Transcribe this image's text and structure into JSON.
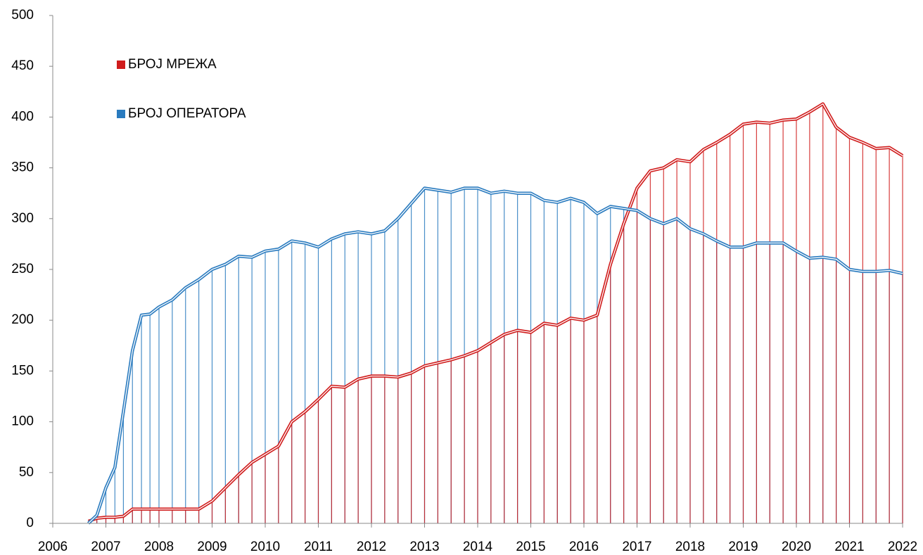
{
  "chart_data": {
    "type": "line",
    "x": [
      2006.67,
      2006.83,
      2007.0,
      2007.17,
      2007.33,
      2007.5,
      2007.67,
      2007.83,
      2008.0,
      2008.25,
      2008.5,
      2008.75,
      2009.0,
      2009.25,
      2009.5,
      2009.75,
      2010.0,
      2010.25,
      2010.5,
      2010.75,
      2011.0,
      2011.25,
      2011.5,
      2011.75,
      2012.0,
      2012.25,
      2012.5,
      2012.75,
      2013.0,
      2013.25,
      2013.5,
      2013.75,
      2014.0,
      2014.25,
      2014.5,
      2014.75,
      2015.0,
      2015.25,
      2015.5,
      2015.75,
      2016.0,
      2016.25,
      2016.5,
      2016.75,
      2017.0,
      2017.25,
      2017.5,
      2017.75,
      2018.0,
      2018.25,
      2018.5,
      2018.75,
      2019.0,
      2019.25,
      2019.5,
      2019.75,
      2020.0,
      2020.25,
      2020.5,
      2020.75,
      2021.0,
      2021.25,
      2021.5,
      2021.75,
      2022.0
    ],
    "series": [
      {
        "name": "БРОЈ МРЕЖА",
        "color": "#d01c1c",
        "values": [
          2,
          5,
          6,
          6,
          7,
          14,
          14,
          14,
          14,
          14,
          14,
          14,
          22,
          35,
          48,
          60,
          68,
          76,
          100,
          110,
          122,
          135,
          134,
          142,
          145,
          145,
          144,
          148,
          155,
          158,
          161,
          165,
          170,
          178,
          186,
          190,
          188,
          197,
          195,
          202,
          200,
          205,
          255,
          295,
          330,
          347,
          350,
          358,
          356,
          368,
          375,
          383,
          393,
          395,
          394,
          397,
          398,
          405,
          413,
          390,
          380,
          375,
          369,
          370,
          362
        ]
      },
      {
        "name": "БРОЈ ОПЕРАТОРА",
        "color": "#2a7bbf",
        "values": [
          0,
          8,
          35,
          55,
          110,
          170,
          205,
          206,
          213,
          220,
          232,
          240,
          250,
          255,
          263,
          262,
          268,
          270,
          278,
          276,
          272,
          280,
          285,
          287,
          285,
          288,
          300,
          315,
          330,
          328,
          326,
          330,
          330,
          325,
          327,
          325,
          325,
          318,
          316,
          320,
          316,
          305,
          312,
          310,
          308,
          300,
          295,
          300,
          290,
          285,
          278,
          272,
          272,
          276,
          276,
          276,
          268,
          261,
          262,
          260,
          250,
          248,
          248,
          249,
          246
        ]
      }
    ],
    "xlim": [
      2006,
      2022
    ],
    "xticks": [
      2006,
      2007,
      2008,
      2009,
      2010,
      2011,
      2012,
      2013,
      2014,
      2015,
      2016,
      2017,
      2018,
      2019,
      2020,
      2021,
      2022
    ],
    "ylim": [
      0,
      500
    ],
    "yticks": [
      0,
      50,
      100,
      150,
      200,
      250,
      300,
      350,
      400,
      450,
      500
    ],
    "legend": "top-left"
  }
}
